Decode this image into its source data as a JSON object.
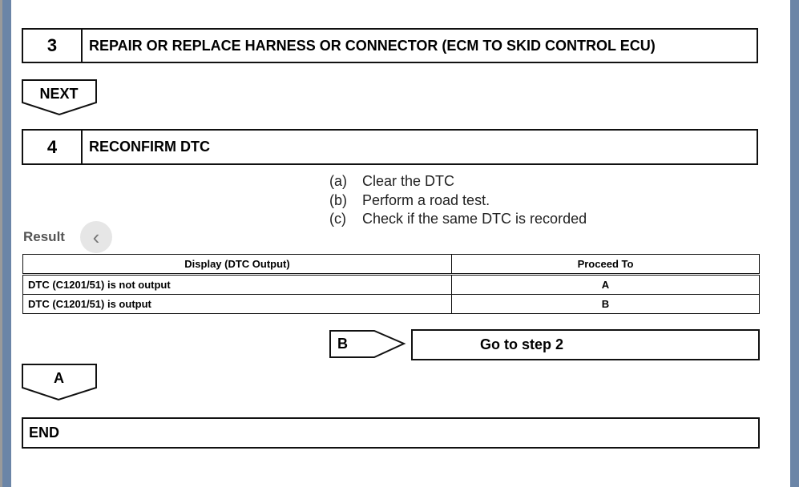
{
  "step3": {
    "number": "3",
    "title": "REPAIR OR REPLACE HARNESS OR CONNECTOR (ECM TO SKID CONTROL ECU)"
  },
  "next_label": "NEXT",
  "step4": {
    "number": "4",
    "title": "RECONFIRM DTC"
  },
  "instructions": [
    {
      "mark": "(a)",
      "text": "Clear the DTC"
    },
    {
      "mark": "(b)",
      "text": "Perform a road test."
    },
    {
      "mark": "(c)",
      "text": "Check if the same DTC is recorded"
    }
  ],
  "result_label": "Result",
  "nav": {
    "prev_icon": "chevron-left-icon",
    "prev_glyph": "‹"
  },
  "table": {
    "headers": [
      "Display (DTC Output)",
      "Proceed To"
    ],
    "rows": [
      [
        "DTC (C1201/51) is not output",
        "A"
      ],
      [
        "DTC (C1201/51) is output",
        "B"
      ]
    ]
  },
  "branch_b": {
    "label": "B",
    "action": "Go to step 2"
  },
  "branch_a": {
    "label": "A"
  },
  "end_label": "END",
  "colors": {
    "frame": "#6b85a7",
    "border": "#111111"
  }
}
